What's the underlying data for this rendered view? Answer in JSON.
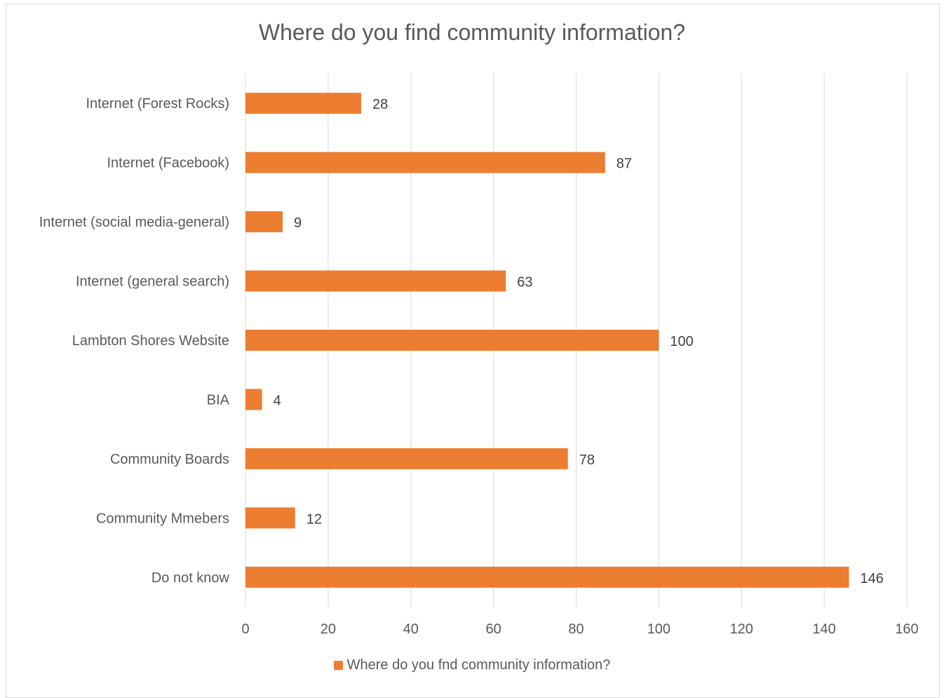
{
  "chart_data": {
    "type": "bar",
    "orientation": "horizontal",
    "title": "Where do you find community information?",
    "categories": [
      "Internet (Forest Rocks)",
      "Internet (Facebook)",
      "Internet (social media-general)",
      "Internet (general search)",
      "Lambton Shores Website",
      "BIA",
      "Community Boards",
      "Community Mmebers",
      "Do not know"
    ],
    "series": [
      {
        "name": "Where do you fnd community information?",
        "values": [
          28,
          87,
          9,
          63,
          100,
          4,
          78,
          12,
          146
        ],
        "color": "#ed7d31"
      }
    ],
    "xlim": [
      0,
      160
    ],
    "xticks": [
      0,
      20,
      40,
      60,
      80,
      100,
      120,
      140,
      160
    ],
    "grid": true,
    "legend_position": "bottom",
    "data_labels": true
  }
}
